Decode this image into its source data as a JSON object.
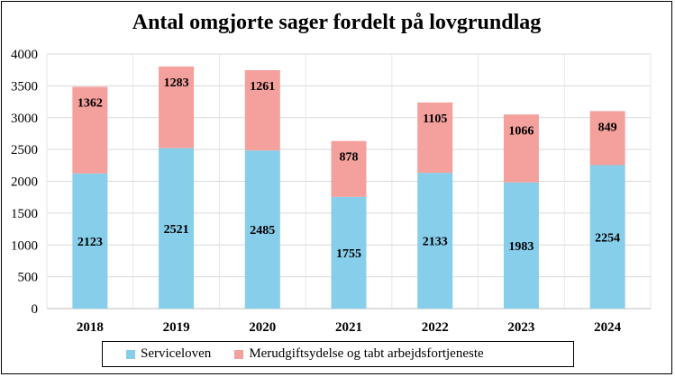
{
  "chart_data": {
    "type": "bar",
    "stacked": true,
    "title": "Antal omgjorte sager fordelt på lovgrundlag",
    "categories": [
      "2018",
      "2019",
      "2020",
      "2021",
      "2022",
      "2023",
      "2024"
    ],
    "series": [
      {
        "name": "Serviceloven",
        "color": "#87CEEB",
        "values": [
          2123,
          2521,
          2485,
          1755,
          2133,
          1983,
          2254
        ]
      },
      {
        "name": "Merudgiftsydelse og tabt arbejdsfortjeneste",
        "color": "#F4A09C",
        "values": [
          1362,
          1283,
          1261,
          878,
          1105,
          1066,
          849
        ]
      }
    ],
    "yticks": [
      "0",
      "500",
      "1000",
      "1500",
      "2000",
      "2500",
      "3000",
      "3500",
      "4000"
    ],
    "ylim": [
      0,
      4000
    ],
    "grid": true,
    "legend_position": "bottom"
  }
}
